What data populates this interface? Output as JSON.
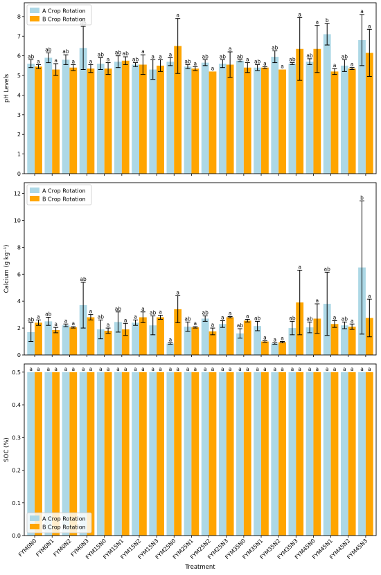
{
  "chart_data": [
    {
      "type": "bar",
      "ylabel": "pH Levels",
      "xlabel": "",
      "ylim": [
        0,
        8.7
      ],
      "yticks": [
        0,
        1,
        2,
        3,
        4,
        5,
        6,
        7,
        8
      ],
      "legend_position": "top-left",
      "categories": [
        "FYM0N0",
        "FYM0N1",
        "FYM0N2",
        "FYM0N3",
        "FYM15N0",
        "FYM15N1",
        "FYM15N2",
        "FYM15N3",
        "FYM25N0",
        "FYM25N1",
        "FYM25N2",
        "FYM25N3",
        "FYM35N0",
        "FYM35N1",
        "FYM35N2",
        "FYM35N3",
        "FYM45N0",
        "FYM45N1",
        "FYM45N2",
        "FYM45N3"
      ],
      "series": [
        {
          "name": "A Crop Rotation",
          "color": "#add8e6",
          "values": [
            5.6,
            5.9,
            5.8,
            6.4,
            5.6,
            5.7,
            5.55,
            5.3,
            5.7,
            5.45,
            5.65,
            5.6,
            5.75,
            5.4,
            5.95,
            5.6,
            5.7,
            7.1,
            5.5,
            6.8
          ],
          "err": [
            0.2,
            0.25,
            0.25,
            1.1,
            0.3,
            0.3,
            0.1,
            0.5,
            0.2,
            0.1,
            0.15,
            0.2,
            0.05,
            0.15,
            0.3,
            0.05,
            0.15,
            0.55,
            0.3,
            1.3
          ],
          "labels": [
            "ab",
            "ab",
            "ab",
            "ab",
            "ab",
            "ab",
            "ab",
            "a",
            "a",
            "ab",
            "ab",
            "ab",
            "ab",
            "ab",
            "ab",
            "ab",
            "ab",
            "b",
            "ab",
            "a"
          ]
        },
        {
          "name": "B Crop Rotation",
          "color": "#ffa500",
          "values": [
            5.45,
            5.3,
            5.4,
            5.35,
            5.35,
            5.75,
            5.55,
            5.5,
            6.5,
            5.35,
            5.2,
            5.55,
            5.4,
            5.4,
            5.3,
            6.35,
            6.35,
            5.2,
            5.35,
            6.15
          ],
          "err": [
            0.1,
            0.3,
            0.15,
            0.2,
            0.3,
            0.2,
            0.5,
            0.3,
            1.4,
            0.1,
            0.0,
            0.65,
            0.25,
            0.05,
            0.0,
            1.6,
            1.2,
            0.15,
            0.05,
            1.2
          ],
          "labels": [
            "a",
            "a",
            "a",
            "a",
            "a",
            "ab",
            "a",
            "a",
            "a",
            "a",
            "a",
            "a",
            "a",
            "a",
            "a",
            "a",
            "a",
            "a",
            "a",
            "a"
          ]
        }
      ]
    },
    {
      "type": "bar",
      "ylabel": "Calcium (g kg⁻¹)",
      "xlabel": "",
      "ylim": [
        0,
        12.8
      ],
      "yticks": [
        0,
        2,
        4,
        6,
        8,
        10,
        12
      ],
      "legend_position": "top-left",
      "categories": [
        "FYM0N0",
        "FYM0N1",
        "FYM0N2",
        "FYM0N3",
        "FYM15N0",
        "FYM15N1",
        "FYM15N2",
        "FYM15N3",
        "FYM25N0",
        "FYM25N1",
        "FYM25N2",
        "FYM25N3",
        "FYM35N0",
        "FYM35N1",
        "FYM35N2",
        "FYM35N3",
        "FYM45N0",
        "FYM45N1",
        "FYM45N2",
        "FYM45N3"
      ],
      "series": [
        {
          "name": "A Crop Rotation",
          "color": "#add8e6",
          "values": [
            1.7,
            2.5,
            2.2,
            3.7,
            1.9,
            2.45,
            2.4,
            2.2,
            0.85,
            2.1,
            2.7,
            2.3,
            1.6,
            2.15,
            0.85,
            2.0,
            2.05,
            3.8,
            2.2,
            6.5
          ],
          "err": [
            0.7,
            0.3,
            0.1,
            1.7,
            0.7,
            0.75,
            0.2,
            0.7,
            0.05,
            0.35,
            0.2,
            0.25,
            0.35,
            0.35,
            0.05,
            0.5,
            0.4,
            2.35,
            0.25,
            4.95
          ],
          "labels": [
            "ab",
            "ab",
            "a",
            "ab",
            "ab",
            "ab",
            "a",
            "ab",
            "a",
            "ab",
            "ab",
            "a",
            "ab",
            "ab",
            "a",
            "ab",
            "ab",
            "ab",
            "ab",
            "b"
          ]
        },
        {
          "name": "B Crop Rotation",
          "color": "#ffa500",
          "values": [
            2.4,
            1.85,
            2.05,
            2.8,
            1.8,
            1.9,
            2.8,
            2.8,
            3.4,
            2.05,
            1.75,
            2.8,
            2.55,
            1.0,
            0.95,
            3.9,
            2.7,
            2.3,
            2.1,
            2.75
          ],
          "err": [
            0.2,
            0.2,
            0.05,
            0.2,
            0.2,
            0.45,
            0.4,
            0.15,
            1.0,
            0.05,
            0.25,
            0.05,
            0.1,
            0.05,
            0.05,
            2.4,
            1.1,
            0.25,
            0.2,
            1.4
          ],
          "labels": [
            "a",
            "a",
            "a",
            "a",
            "a",
            "a",
            "a",
            "a",
            "a",
            "a",
            "a",
            "a",
            "a",
            "a",
            "a",
            "a",
            "a",
            "a",
            "a",
            "a"
          ]
        }
      ]
    },
    {
      "type": "bar",
      "ylabel": "SOC (%)",
      "xlabel": "Treatment",
      "ylim": [
        0,
        0.525
      ],
      "yticks": [
        0.0,
        0.1,
        0.2,
        0.3,
        0.4,
        0.5
      ],
      "legend_position": "bottom-left",
      "categories": [
        "FYM0N0",
        "FYM0N1",
        "FYM0N2",
        "FYM0N3",
        "FYM15N0",
        "FYM15N1",
        "FYM15N2",
        "FYM15N3",
        "FYM25N0",
        "FYM25N1",
        "FYM25N2",
        "FYM25N3",
        "FYM35N0",
        "FYM35N1",
        "FYM35N2",
        "FYM35N3",
        "FYM45N0",
        "FYM45N1",
        "FYM45N2",
        "FYM45N3"
      ],
      "series": [
        {
          "name": "A Crop Rotation",
          "color": "#add8e6",
          "values": [
            0.5,
            0.5,
            0.5,
            0.5,
            0.5,
            0.5,
            0.5,
            0.5,
            0.5,
            0.5,
            0.5,
            0.5,
            0.5,
            0.5,
            0.5,
            0.5,
            0.5,
            0.5,
            0.5,
            0.5
          ],
          "err": [
            0,
            0,
            0,
            0,
            0,
            0,
            0,
            0,
            0,
            0,
            0,
            0,
            0,
            0,
            0,
            0,
            0,
            0,
            0,
            0
          ],
          "labels": [
            "a",
            "a",
            "a",
            "a",
            "a",
            "a",
            "a",
            "a",
            "a",
            "a",
            "a",
            "a",
            "a",
            "a",
            "a",
            "a",
            "a",
            "a",
            "a",
            "a"
          ]
        },
        {
          "name": "B Crop Rotation",
          "color": "#ffa500",
          "values": [
            0.5,
            0.5,
            0.5,
            0.5,
            0.5,
            0.5,
            0.5,
            0.5,
            0.5,
            0.5,
            0.5,
            0.5,
            0.5,
            0.5,
            0.5,
            0.5,
            0.5,
            0.5,
            0.5,
            0.5
          ],
          "err": [
            0,
            0,
            0,
            0,
            0,
            0,
            0,
            0,
            0,
            0,
            0,
            0,
            0,
            0,
            0,
            0,
            0,
            0,
            0,
            0
          ],
          "labels": [
            "a",
            "a",
            "a",
            "a",
            "a",
            "a",
            "a",
            "a",
            "a",
            "a",
            "a",
            "a",
            "a",
            "a",
            "a",
            "a",
            "a",
            "a",
            "a",
            "a"
          ]
        }
      ]
    }
  ]
}
